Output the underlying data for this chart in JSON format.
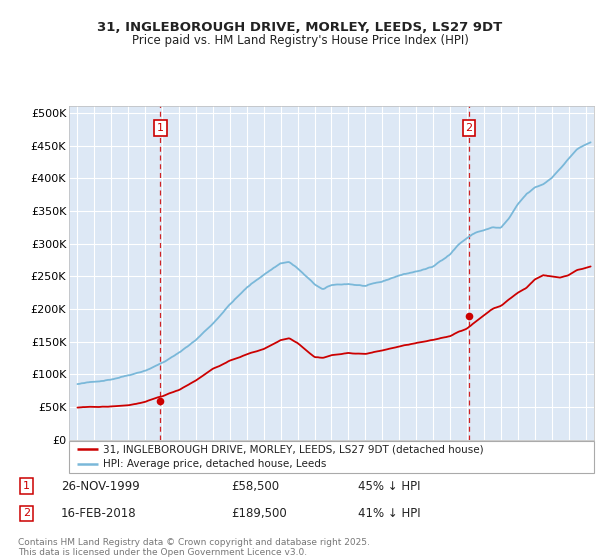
{
  "title_line1": "31, INGLEBOROUGH DRIVE, MORLEY, LEEDS, LS27 9DT",
  "title_line2": "Price paid vs. HM Land Registry's House Price Index (HPI)",
  "ylabel_ticks": [
    "£0",
    "£50K",
    "£100K",
    "£150K",
    "£200K",
    "£250K",
    "£300K",
    "£350K",
    "£400K",
    "£450K",
    "£500K"
  ],
  "ytick_values": [
    0,
    50000,
    100000,
    150000,
    200000,
    250000,
    300000,
    350000,
    400000,
    450000,
    500000
  ],
  "ylim": [
    0,
    510000
  ],
  "xlim_start": 1994.5,
  "xlim_end": 2025.5,
  "purchase1_x": 1999.9,
  "purchase1_y": 58500,
  "purchase2_x": 2018.12,
  "purchase2_y": 189500,
  "purchase1_date": "26-NOV-1999",
  "purchase1_price": "£58,500",
  "purchase1_hpi": "45% ↓ HPI",
  "purchase2_date": "16-FEB-2018",
  "purchase2_price": "£189,500",
  "purchase2_hpi": "41% ↓ HPI",
  "hpi_color": "#7ab8d9",
  "price_color": "#cc0000",
  "background_color": "#dde8f5",
  "grid_color": "#ffffff",
  "legend_label_price": "31, INGLEBOROUGH DRIVE, MORLEY, LEEDS, LS27 9DT (detached house)",
  "legend_label_hpi": "HPI: Average price, detached house, Leeds",
  "footnote": "Contains HM Land Registry data © Crown copyright and database right 2025.\nThis data is licensed under the Open Government Licence v3.0.",
  "dashed_line_color": "#cc0000",
  "hpi_anchors_x": [
    1995,
    1996,
    1997,
    1998,
    1999,
    2000,
    2001,
    2002,
    2003,
    2004,
    2005,
    2006,
    2007,
    2007.5,
    2008,
    2009,
    2009.5,
    2010,
    2011,
    2012,
    2013,
    2014,
    2015,
    2016,
    2017,
    2017.5,
    2018,
    2018.5,
    2019,
    2019.5,
    2020,
    2020.5,
    2021,
    2021.5,
    2022,
    2022.5,
    2023,
    2023.5,
    2024,
    2024.5,
    2025.3
  ],
  "hpi_anchors_y": [
    85000,
    88000,
    93000,
    100000,
    108000,
    120000,
    135000,
    155000,
    180000,
    210000,
    235000,
    255000,
    273000,
    275000,
    265000,
    240000,
    232000,
    238000,
    240000,
    237000,
    242000,
    252000,
    258000,
    265000,
    285000,
    300000,
    310000,
    318000,
    322000,
    326000,
    325000,
    340000,
    360000,
    375000,
    385000,
    390000,
    400000,
    415000,
    430000,
    445000,
    455000
  ],
  "price_anchors_x": [
    1995,
    1996,
    1997,
    1998,
    1999,
    2000,
    2001,
    2002,
    2003,
    2004,
    2005,
    2006,
    2007,
    2007.5,
    2008,
    2009,
    2009.5,
    2010,
    2011,
    2012,
    2013,
    2014,
    2015,
    2016,
    2017,
    2017.5,
    2018,
    2018.5,
    2019,
    2019.5,
    2020,
    2020.5,
    2021,
    2021.5,
    2022,
    2022.5,
    2023,
    2023.5,
    2024,
    2024.5,
    2025.3
  ],
  "price_anchors_y": [
    49000,
    49500,
    50000,
    52000,
    57000,
    65000,
    75000,
    90000,
    108000,
    120000,
    130000,
    138000,
    152000,
    155000,
    148000,
    127000,
    126000,
    130000,
    133000,
    132000,
    137000,
    143000,
    148000,
    152000,
    158000,
    165000,
    170000,
    180000,
    190000,
    200000,
    205000,
    215000,
    225000,
    232000,
    245000,
    252000,
    250000,
    248000,
    252000,
    260000,
    265000
  ]
}
